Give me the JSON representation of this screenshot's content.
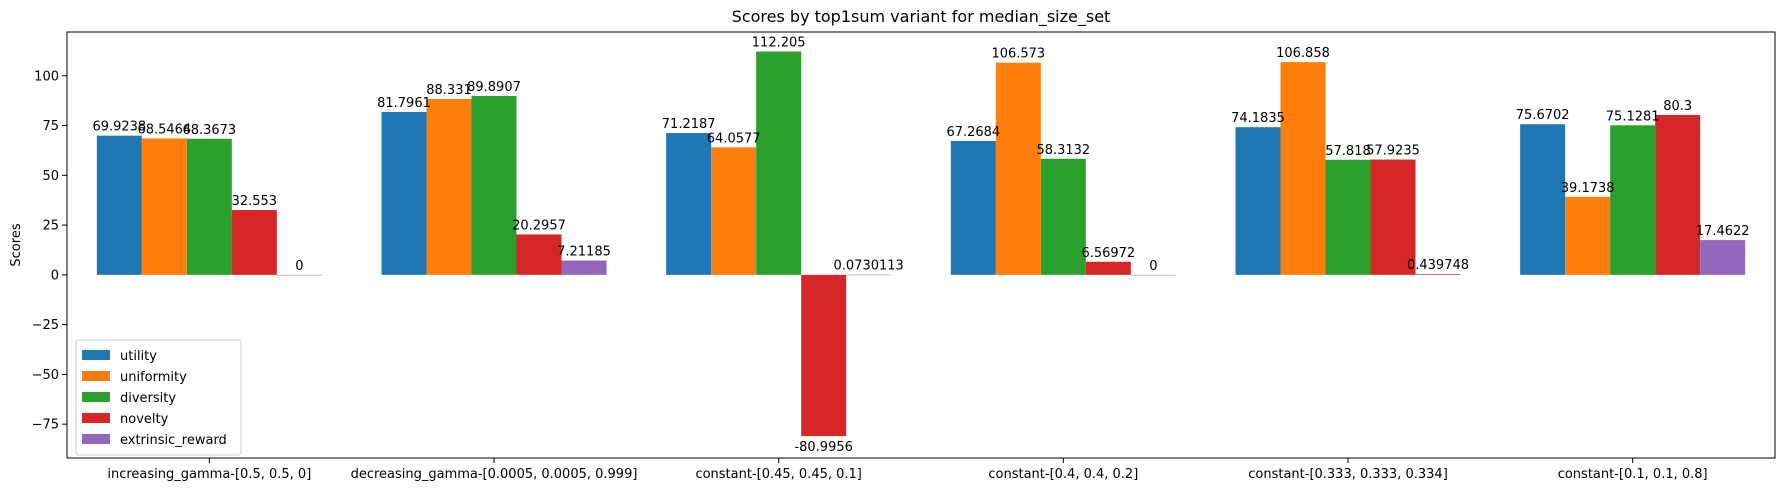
{
  "chart_data": {
    "type": "bar",
    "title": "Scores by top1sum variant for median_size_set",
    "xlabel": "",
    "ylabel": "Scores",
    "ylim": [
      -92,
      122
    ],
    "yticks": [
      -75,
      -50,
      -25,
      0,
      25,
      50,
      75,
      100
    ],
    "grid": false,
    "legend_position": "lower-left",
    "categories": [
      "increasing_gamma-[0.5, 0.5, 0]",
      "decreasing_gamma-[0.0005, 0.0005, 0.999]",
      "constant-[0.45, 0.45, 0.1]",
      "constant-[0.4, 0.4, 0.2]",
      "constant-[0.333, 0.333, 0.334]",
      "constant-[0.1, 0.1, 0.8]"
    ],
    "series": [
      {
        "name": "utility",
        "color": "#1f77b4",
        "values": [
          69.9238,
          81.7961,
          71.2187,
          67.2684,
          74.1835,
          75.6702
        ],
        "labels": [
          "69.9238",
          "81.7961",
          "71.2187",
          "67.2684",
          "74.1835",
          "75.6702"
        ]
      },
      {
        "name": "uniformity",
        "color": "#ff7f0e",
        "values": [
          68.5464,
          88.331,
          64.0577,
          106.573,
          106.858,
          39.1738
        ],
        "labels": [
          "68.5464",
          "88.331",
          "64.0577",
          "106.573",
          "106.858",
          "39.1738"
        ]
      },
      {
        "name": "diversity",
        "color": "#2ca02c",
        "values": [
          68.3673,
          89.8907,
          112.205,
          58.3132,
          57.818,
          75.1281
        ],
        "labels": [
          "68.3673",
          "89.8907",
          "112.205",
          "58.3132",
          "57.818",
          "75.1281"
        ]
      },
      {
        "name": "novelty",
        "color": "#d62728",
        "values": [
          32.553,
          20.2957,
          -80.9956,
          6.56972,
          57.9235,
          80.3
        ],
        "labels": [
          "32.553",
          "20.2957",
          "-80.9956",
          "6.56972",
          "57.9235",
          "80.3"
        ]
      },
      {
        "name": "extrinsic_reward",
        "color": "#9467bd",
        "values": [
          0,
          7.21185,
          0.0730113,
          0,
          0.439748,
          17.4622
        ],
        "labels": [
          "0",
          "7.21185",
          "0.0730113",
          "0",
          "0.439748",
          "17.4622"
        ]
      }
    ]
  }
}
